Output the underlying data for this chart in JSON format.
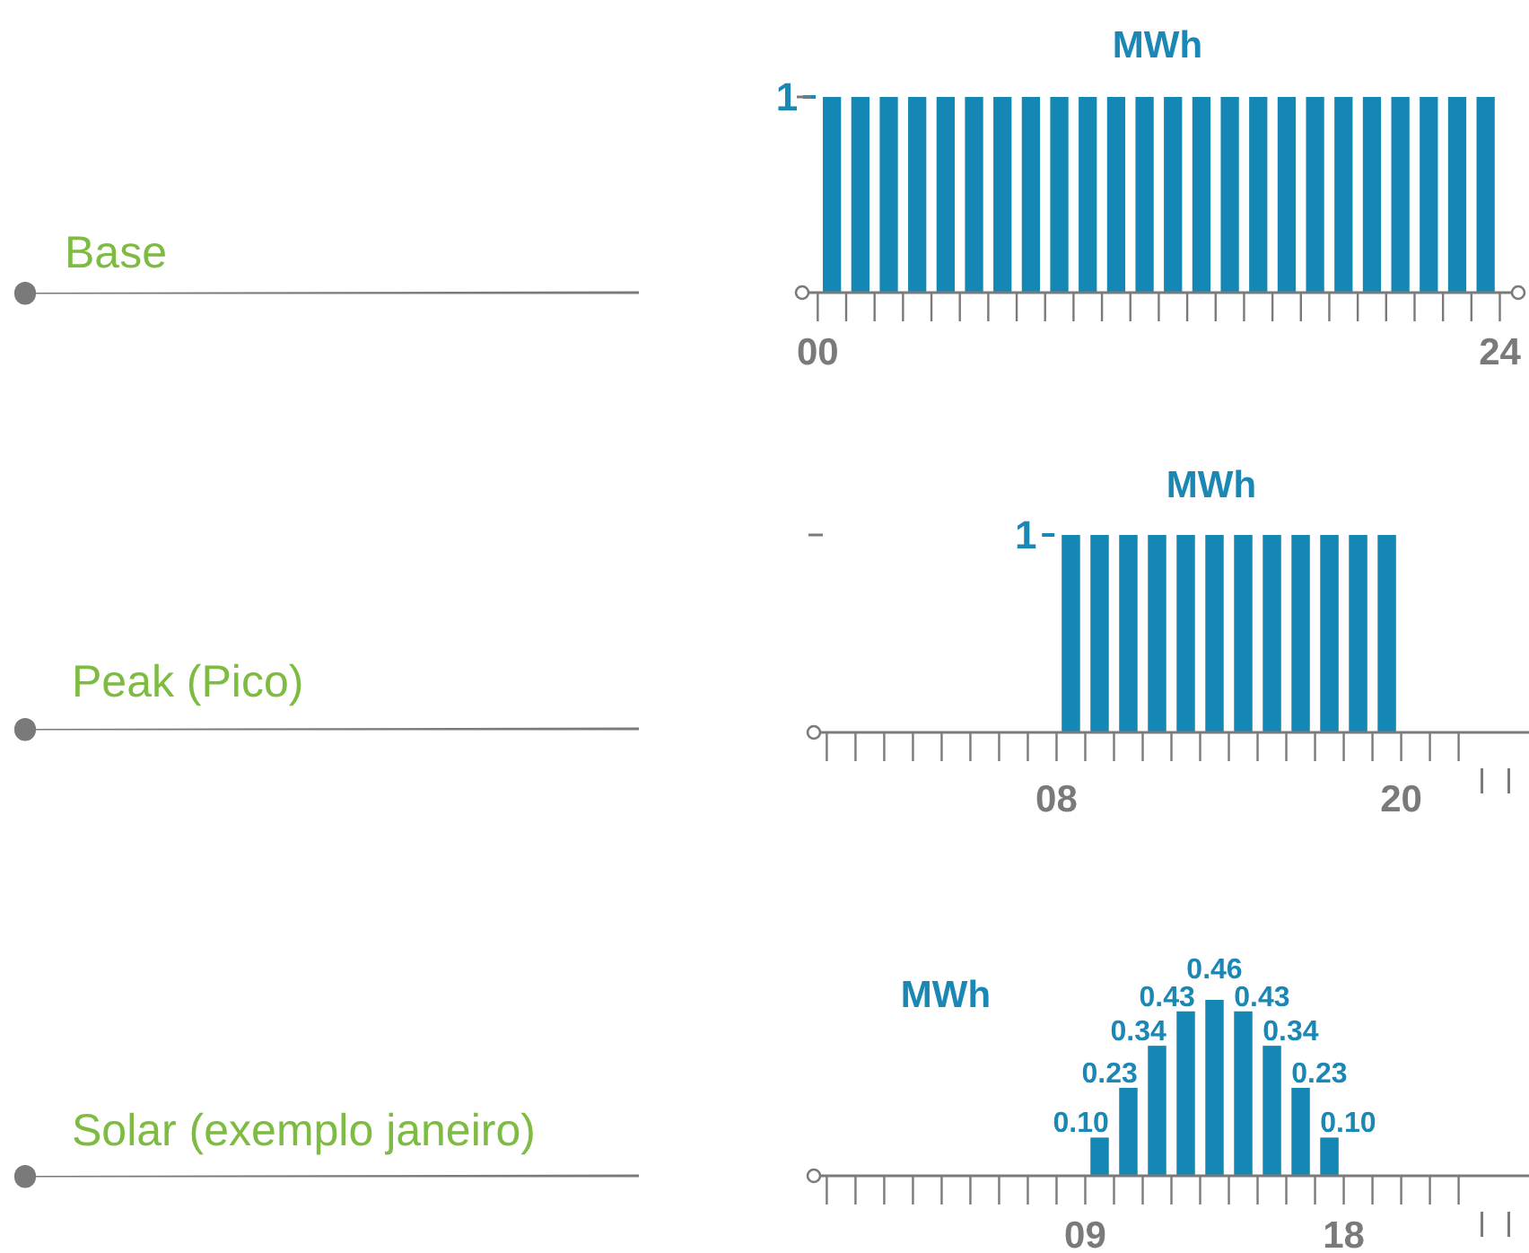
{
  "chart_data": [
    {
      "type": "bar",
      "annotations": [
        "Base"
      ],
      "ylabel": "MWh",
      "x": [
        0.5,
        1.5,
        2.5,
        3.5,
        4.5,
        5.5,
        6.5,
        7.5,
        8.5,
        9.5,
        10.5,
        11.5,
        12.5,
        13.5,
        14.5,
        15.5,
        16.5,
        17.5,
        18.5,
        19.5,
        20.5,
        21.5,
        22.5,
        23.5
      ],
      "values": [
        1,
        1,
        1,
        1,
        1,
        1,
        1,
        1,
        1,
        1,
        1,
        1,
        1,
        1,
        1,
        1,
        1,
        1,
        1,
        1,
        1,
        1,
        1,
        1
      ],
      "color": "#1487b4",
      "xlim": [
        -0.8,
        24.9
      ],
      "xticks": [
        {
          "value": 0,
          "label": "00"
        },
        {
          "value": 1,
          "label": null
        },
        {
          "value": 2,
          "label": null
        },
        {
          "value": 3,
          "label": null
        },
        {
          "value": 4,
          "label": null
        },
        {
          "value": 5,
          "label": null
        },
        {
          "value": 6,
          "label": null
        },
        {
          "value": 7,
          "label": null
        },
        {
          "value": 8,
          "label": null
        },
        {
          "value": 9,
          "label": null
        },
        {
          "value": 10,
          "label": null
        },
        {
          "value": 11,
          "label": null
        },
        {
          "value": 12,
          "label": null
        },
        {
          "value": 13,
          "label": null
        },
        {
          "value": 14,
          "label": null
        },
        {
          "value": 15,
          "label": null
        },
        {
          "value": 16,
          "label": null
        },
        {
          "value": 17,
          "label": null
        },
        {
          "value": 18,
          "label": null
        },
        {
          "value": 19,
          "label": null
        },
        {
          "value": 20,
          "label": null
        },
        {
          "value": 21,
          "label": null
        },
        {
          "value": 22,
          "label": null
        },
        {
          "value": 23,
          "label": null
        },
        {
          "value": 24,
          "label": "24"
        }
      ],
      "ylim": [
        0,
        1
      ],
      "yticks": [
        1
      ],
      "grid": false
    },
    {
      "type": "bar",
      "annotations": [
        "Peak (Pico)"
      ],
      "ylabel": "MWh",
      "x": [
        8.5,
        9.5,
        10.5,
        11.5,
        12.5,
        13.5,
        14.5,
        15.5,
        16.5,
        17.5,
        18.5,
        19.5
      ],
      "values": [
        1,
        1,
        1,
        1,
        1,
        1,
        1,
        1,
        1,
        1,
        1,
        1
      ],
      "color": "#1487b4",
      "xlim": [
        -0.7,
        24.45
      ],
      "xticks": [
        {
          "value": 0,
          "label": null
        },
        {
          "value": 1,
          "label": null
        },
        {
          "value": 2,
          "label": null
        },
        {
          "value": 3,
          "label": null
        },
        {
          "value": 4,
          "label": null
        },
        {
          "value": 5,
          "label": null
        },
        {
          "value": 6,
          "label": null
        },
        {
          "value": 7,
          "label": null
        },
        {
          "value": 8,
          "label": "08"
        },
        {
          "value": 9,
          "label": null
        },
        {
          "value": 10,
          "label": null
        },
        {
          "value": 11,
          "label": null
        },
        {
          "value": 12,
          "label": null
        },
        {
          "value": 13,
          "label": null
        },
        {
          "value": 14,
          "label": null
        },
        {
          "value": 15,
          "label": null
        },
        {
          "value": 16,
          "label": null
        },
        {
          "value": 17,
          "label": null
        },
        {
          "value": 18,
          "label": null
        },
        {
          "value": 19,
          "label": null
        },
        {
          "value": 20,
          "label": "20"
        },
        {
          "value": 21,
          "label": null
        },
        {
          "value": 22,
          "label": null
        }
      ],
      "ylim": [
        0,
        1
      ],
      "yticks": [
        1
      ],
      "grid": false
    },
    {
      "type": "bar",
      "annotations": [
        "Solar (exemplo janeiro)"
      ],
      "ylabel": "MWh",
      "x": [
        9.5,
        10.5,
        11.5,
        12.5,
        13.5,
        14.5,
        15.5,
        16.5,
        17.5
      ],
      "values": [
        0.1,
        0.23,
        0.34,
        0.43,
        0.46,
        0.43,
        0.34,
        0.23,
        0.1
      ],
      "value_labels": [
        "0.10",
        "0.23",
        "0.34",
        "0.43",
        "0.46",
        "0.43",
        "0.34",
        "0.23",
        "0.10"
      ],
      "color": "#1487b4",
      "xlim": [
        -0.7,
        24.45
      ],
      "xticks": [
        {
          "value": 0,
          "label": null
        },
        {
          "value": 1,
          "label": null
        },
        {
          "value": 2,
          "label": null
        },
        {
          "value": 3,
          "label": null
        },
        {
          "value": 4,
          "label": null
        },
        {
          "value": 5,
          "label": null
        },
        {
          "value": 6,
          "label": null
        },
        {
          "value": 7,
          "label": null
        },
        {
          "value": 8,
          "label": null
        },
        {
          "value": 9,
          "label": "09"
        },
        {
          "value": 10,
          "label": null
        },
        {
          "value": 11,
          "label": null
        },
        {
          "value": 12,
          "label": null
        },
        {
          "value": 13,
          "label": null
        },
        {
          "value": 14,
          "label": null
        },
        {
          "value": 15,
          "label": null
        },
        {
          "value": 16,
          "label": null
        },
        {
          "value": 17,
          "label": null
        },
        {
          "value": 18,
          "label": "18"
        },
        {
          "value": 19,
          "label": null
        },
        {
          "value": 20,
          "label": null
        },
        {
          "value": 21,
          "label": null
        },
        {
          "value": 22,
          "label": null
        }
      ],
      "tick_labels": "x",
      "grid": false
    }
  ]
}
